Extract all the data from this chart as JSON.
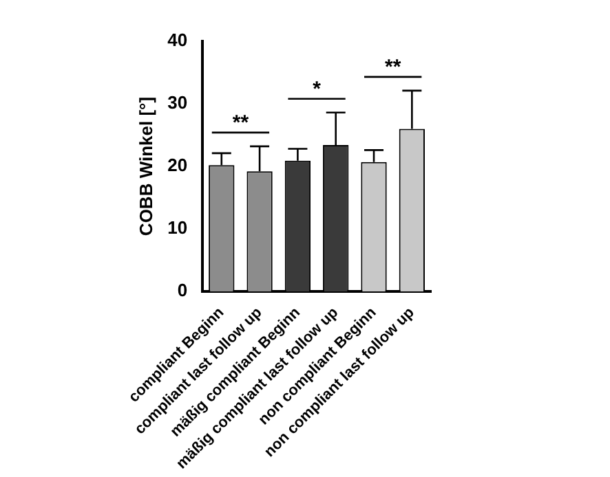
{
  "chart_data": {
    "type": "bar",
    "ylabel": "COBB Winkel [°]",
    "categories": [
      "compliant Beginn",
      "compliant last follow up",
      "mäßig compliant Beginn",
      "mäßig compliant last follow up",
      "non compliant Beginn",
      "non compliant last follow up"
    ],
    "values": [
      20.2,
      19.2,
      20.9,
      23.4,
      20.7,
      26.0
    ],
    "errors": [
      [
        20.2,
        22.1
      ],
      [
        19.2,
        23.2
      ],
      [
        20.9,
        22.8
      ],
      [
        23.4,
        28.6
      ],
      [
        20.7,
        22.6
      ],
      [
        26.0,
        32.1
      ]
    ],
    "colors": [
      "#8c8c8c",
      "#8c8c8c",
      "#3a3a3a",
      "#3a3a3a",
      "#c8c8c8",
      "#c8c8c8"
    ],
    "ylim": [
      0,
      40
    ],
    "yticks": [
      0,
      10,
      20,
      30,
      40
    ],
    "grid": false,
    "legend": false,
    "annotations": [
      "**",
      "*",
      "**"
    ]
  }
}
